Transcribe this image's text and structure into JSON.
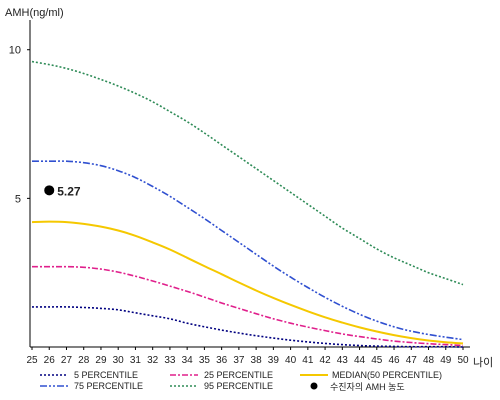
{
  "chart_data": {
    "type": "line",
    "title": "",
    "ylabel": "AMH(ng/ml)",
    "xlabel": "나이",
    "xlim": [
      25,
      50
    ],
    "ylim": [
      0,
      11
    ],
    "x_ticks": [
      25,
      26,
      27,
      28,
      29,
      30,
      31,
      32,
      33,
      34,
      35,
      36,
      37,
      38,
      39,
      40,
      41,
      42,
      43,
      44,
      45,
      46,
      47,
      48,
      49,
      50
    ],
    "y_ticks": [
      5,
      10
    ],
    "grid": false,
    "legend_position": "bottom",
    "x": [
      25,
      26,
      27,
      28,
      29,
      30,
      31,
      32,
      33,
      34,
      35,
      36,
      37,
      38,
      39,
      40,
      41,
      42,
      43,
      44,
      45,
      46,
      47,
      48,
      49,
      50
    ],
    "series": [
      {
        "name": "5 PERCENTILE",
        "color": "#000080",
        "dash": "2,2",
        "values": [
          1.35,
          1.35,
          1.35,
          1.33,
          1.3,
          1.25,
          1.15,
          1.05,
          0.95,
          0.8,
          0.68,
          0.57,
          0.47,
          0.38,
          0.3,
          0.23,
          0.17,
          0.12,
          0.08,
          0.05,
          0.03,
          0.02,
          0.01,
          0.01,
          0.01,
          0.0
        ]
      },
      {
        "name": "25 PERCENTILE",
        "color": "#e0208c",
        "dash": "6,2,2,2",
        "values": [
          2.7,
          2.7,
          2.7,
          2.68,
          2.62,
          2.52,
          2.38,
          2.22,
          2.05,
          1.87,
          1.68,
          1.48,
          1.3,
          1.12,
          0.95,
          0.8,
          0.67,
          0.55,
          0.44,
          0.35,
          0.27,
          0.2,
          0.15,
          0.11,
          0.08,
          0.05
        ]
      },
      {
        "name": "MEDIAN(50 PERCENTILE)",
        "color": "#f5c800",
        "dash": "",
        "values": [
          4.2,
          4.22,
          4.2,
          4.14,
          4.05,
          3.92,
          3.74,
          3.52,
          3.28,
          3.0,
          2.72,
          2.45,
          2.17,
          1.9,
          1.65,
          1.42,
          1.2,
          1.0,
          0.82,
          0.66,
          0.52,
          0.4,
          0.3,
          0.22,
          0.16,
          0.12
        ]
      },
      {
        "name": "75 PERCENTILE",
        "color": "#3050d0",
        "dash": "7,2,2,2,2,2",
        "values": [
          6.25,
          6.25,
          6.25,
          6.2,
          6.1,
          5.93,
          5.7,
          5.4,
          5.07,
          4.7,
          4.32,
          3.92,
          3.52,
          3.12,
          2.72,
          2.35,
          2.0,
          1.67,
          1.37,
          1.1,
          0.87,
          0.68,
          0.53,
          0.42,
          0.33,
          0.25
        ]
      },
      {
        "name": "95 PERCENTILE",
        "color": "#2e8b57",
        "dash": "2,2",
        "values": [
          9.6,
          9.5,
          9.37,
          9.2,
          9.0,
          8.78,
          8.53,
          8.25,
          7.92,
          7.58,
          7.2,
          6.8,
          6.4,
          6.0,
          5.6,
          5.2,
          4.8,
          4.4,
          4.0,
          3.65,
          3.3,
          3.0,
          2.75,
          2.5,
          2.3,
          2.1
        ]
      }
    ],
    "annotations": [
      {
        "name": "수진자의 AMH 농도",
        "x": 26,
        "y": 5.27,
        "label": "5.27",
        "color": "#000000"
      }
    ]
  }
}
